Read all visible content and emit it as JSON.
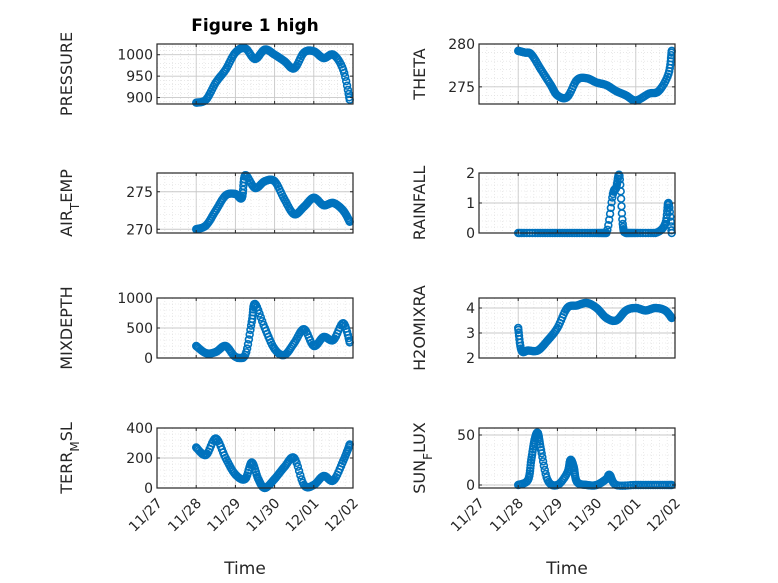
{
  "chart_data": [
    {
      "type": "scatter",
      "title": "Figure 1 high",
      "ylabel": "PRESSURE",
      "xlabel": "",
      "ylim": [
        885,
        1025
      ],
      "yticks": [
        900,
        950,
        1000
      ],
      "x": [
        "11/28 00:00",
        "11/28 06:00",
        "11/28 12:00",
        "11/28 18:00",
        "11/29 00:00",
        "11/29 06:00",
        "11/29 12:00",
        "11/29 18:00",
        "11/30 00:00",
        "11/30 06:00",
        "11/30 12:00",
        "11/30 18:00",
        "12/01 00:00",
        "12/01 06:00",
        "12/01 12:00",
        "12/01 18:00",
        "12/01 22:00"
      ],
      "y": [
        888,
        895,
        935,
        965,
        1005,
        1015,
        990,
        1012,
        1000,
        985,
        968,
        1005,
        1008,
        992,
        1000,
        965,
        895
      ]
    },
    {
      "type": "scatter",
      "ylabel": "THETA",
      "xlabel": "",
      "ylim": [
        273,
        280
      ],
      "yticks": [
        275,
        280
      ],
      "x": [
        "11/28 00:00",
        "11/28 04:00",
        "11/28 08:00",
        "11/28 14:00",
        "11/28 20:00",
        "11/29 00:00",
        "11/29 06:00",
        "11/29 12:00",
        "11/29 18:00",
        "11/30 00:00",
        "11/30 06:00",
        "11/30 12:00",
        "11/30 18:00",
        "12/01 00:00",
        "12/01 08:00",
        "12/01 14:00",
        "12/01 20:00",
        "12/01 22:00"
      ],
      "y": [
        279.2,
        279,
        278.8,
        277,
        275.2,
        274,
        273.8,
        275.8,
        276,
        275.5,
        275.2,
        274.5,
        274,
        273.4,
        274.2,
        274.5,
        276.5,
        279.2
      ]
    },
    {
      "type": "scatter",
      "ylabel": "AIR_TEMP",
      "xlabel": "",
      "ylim": [
        269.5,
        277.5
      ],
      "yticks": [
        270,
        275
      ],
      "x": [
        "11/28 00:00",
        "11/28 06:00",
        "11/28 12:00",
        "11/28 18:00",
        "11/29 00:00",
        "11/29 04:00",
        "11/29 06:00",
        "11/29 12:00",
        "11/29 18:00",
        "11/30 00:00",
        "11/30 06:00",
        "11/30 12:00",
        "11/30 18:00",
        "12/01 00:00",
        "12/01 06:00",
        "12/01 12:00",
        "12/01 18:00",
        "12/01 22:00"
      ],
      "y": [
        270,
        270.5,
        272.5,
        274.5,
        274.7,
        274.2,
        277.2,
        275.5,
        276.4,
        276.4,
        274,
        272,
        273,
        274.2,
        273.2,
        273.5,
        272.5,
        271
      ]
    },
    {
      "type": "scatter",
      "ylabel": "RAINFALL",
      "xlabel": "",
      "ylim": [
        0,
        2
      ],
      "yticks": [
        0,
        1,
        2
      ],
      "x": [
        "11/28 00:00",
        "11/28 12:00",
        "11/29 00:00",
        "11/29 12:00",
        "11/30 00:00",
        "11/30 06:00",
        "11/30 10:00",
        "11/30 12:00",
        "11/30 14:00",
        "11/30 16:00",
        "11/30 18:00",
        "12/01 00:00",
        "12/01 12:00",
        "12/01 18:00",
        "12/01 20:00",
        "12/01 22:00"
      ],
      "y": [
        0,
        0,
        0,
        0,
        0,
        0,
        1.3,
        1.5,
        1.9,
        0.3,
        0,
        0,
        0,
        0.3,
        1.0,
        0
      ]
    },
    {
      "type": "scatter",
      "ylabel": "MIXDEPTH",
      "xlabel": "",
      "ylim": [
        0,
        1000
      ],
      "yticks": [
        0,
        500,
        1000
      ],
      "x": [
        "11/28 00:00",
        "11/28 06:00",
        "11/28 12:00",
        "11/28 18:00",
        "11/29 00:00",
        "11/29 06:00",
        "11/29 10:00",
        "11/29 12:00",
        "11/29 18:00",
        "11/30 00:00",
        "11/30 06:00",
        "11/30 12:00",
        "11/30 18:00",
        "12/01 00:00",
        "12/01 06:00",
        "12/01 12:00",
        "12/01 18:00",
        "12/01 22:00"
      ],
      "y": [
        200,
        80,
        100,
        200,
        20,
        50,
        600,
        900,
        500,
        150,
        50,
        250,
        480,
        200,
        350,
        300,
        580,
        260
      ]
    },
    {
      "type": "scatter",
      "ylabel": "H2OMIXRA",
      "xlabel": "",
      "ylim": [
        2,
        4.4
      ],
      "yticks": [
        2,
        3,
        4
      ],
      "x": [
        "11/28 00:00",
        "11/28 02:00",
        "11/28 06:00",
        "11/28 12:00",
        "11/28 18:00",
        "11/29 00:00",
        "11/29 06:00",
        "11/29 12:00",
        "11/29 18:00",
        "11/30 00:00",
        "11/30 06:00",
        "11/30 12:00",
        "11/30 18:00",
        "12/01 00:00",
        "12/01 06:00",
        "12/01 12:00",
        "12/01 18:00",
        "12/01 22:00"
      ],
      "y": [
        3.2,
        2.3,
        2.3,
        2.3,
        2.7,
        3.2,
        4.0,
        4.1,
        4.2,
        4.0,
        3.6,
        3.5,
        3.9,
        4.0,
        3.9,
        4.0,
        3.9,
        3.6
      ]
    },
    {
      "type": "scatter",
      "ylabel": "TERR_MSL",
      "xlabel": "Time",
      "ylim": [
        0,
        400
      ],
      "yticks": [
        0,
        200,
        400
      ],
      "x": [
        "11/28 00:00",
        "11/28 06:00",
        "11/28 12:00",
        "11/28 18:00",
        "11/29 00:00",
        "11/29 06:00",
        "11/29 10:00",
        "11/29 14:00",
        "11/29 18:00",
        "11/30 00:00",
        "11/30 06:00",
        "11/30 12:00",
        "11/30 18:00",
        "12/01 00:00",
        "12/01 06:00",
        "12/01 12:00",
        "12/01 18:00",
        "12/01 22:00"
      ],
      "y": [
        270,
        220,
        330,
        200,
        90,
        60,
        170,
        60,
        0,
        60,
        140,
        200,
        20,
        20,
        80,
        50,
        180,
        290
      ]
    },
    {
      "type": "scatter",
      "ylabel": "SUN_FLUX",
      "xlabel": "Time",
      "ylim": [
        -3,
        57
      ],
      "yticks": [
        0,
        50
      ],
      "x": [
        "11/28 00:00",
        "11/28 06:00",
        "11/28 08:00",
        "11/28 10:00",
        "11/28 12:00",
        "11/28 14:00",
        "11/28 18:00",
        "11/29 00:00",
        "11/29 06:00",
        "11/29 08:00",
        "11/29 10:00",
        "11/29 12:00",
        "11/29 18:00",
        "11/30 00:00",
        "11/30 06:00",
        "11/30 08:00",
        "11/30 12:00",
        "12/01 00:00",
        "12/01 12:00",
        "12/01 22:00"
      ],
      "y": [
        0,
        5,
        25,
        45,
        52,
        35,
        5,
        0,
        12,
        25,
        18,
        3,
        0,
        0,
        6,
        10,
        0,
        0,
        0,
        0
      ]
    }
  ],
  "x_tick_labels": [
    "11/27",
    "11/28",
    "11/29",
    "11/30",
    "12/01",
    "12/02"
  ],
  "marker_color": "#0072BD"
}
